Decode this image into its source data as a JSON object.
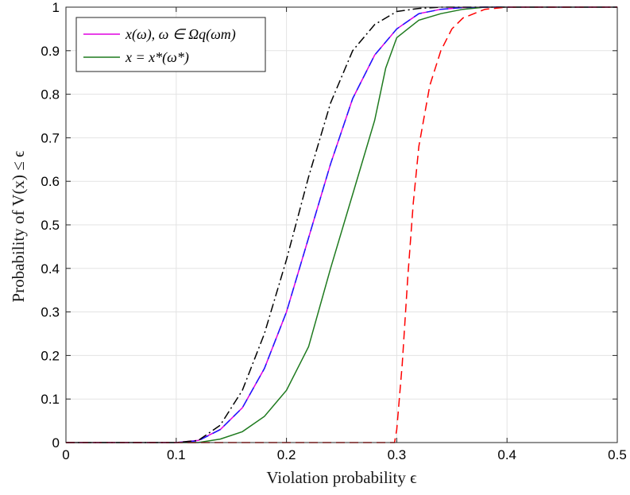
{
  "chart_data": {
    "type": "line",
    "title": "",
    "xlabel": "Violation probability ϵ",
    "ylabel": "Probability of  V(x) ≤ ϵ",
    "xlim": [
      0,
      0.5
    ],
    "ylim": [
      0,
      1
    ],
    "xticks": [
      "0",
      "0.1",
      "0.2",
      "0.3",
      "0.4",
      "0.5"
    ],
    "yticks": [
      "0",
      "0.1",
      "0.2",
      "0.3",
      "0.4",
      "0.5",
      "0.6",
      "0.7",
      "0.8",
      "0.9",
      "1"
    ],
    "grid": true,
    "legend_position": "top-left",
    "series": [
      {
        "name": "x(ω), ω ∈ Ωq(ωm)",
        "color": "#e100e1",
        "style": "solid",
        "x": [
          0,
          0.1,
          0.12,
          0.14,
          0.16,
          0.18,
          0.2,
          0.22,
          0.24,
          0.26,
          0.28,
          0.3,
          0.32,
          0.34,
          0.36,
          0.38,
          0.4,
          0.5
        ],
        "y": [
          0,
          0,
          0.005,
          0.03,
          0.08,
          0.17,
          0.3,
          0.47,
          0.64,
          0.79,
          0.89,
          0.95,
          0.985,
          0.995,
          0.999,
          1,
          1,
          1
        ]
      },
      {
        "name": "x = x*(ω*)",
        "color": "#1e7a1e",
        "style": "solid",
        "x": [
          0,
          0.12,
          0.14,
          0.16,
          0.18,
          0.2,
          0.22,
          0.24,
          0.26,
          0.28,
          0.29,
          0.3,
          0.32,
          0.34,
          0.36,
          0.38,
          0.4,
          0.5
        ],
        "y": [
          0,
          0,
          0.008,
          0.025,
          0.06,
          0.12,
          0.22,
          0.4,
          0.57,
          0.74,
          0.86,
          0.93,
          0.97,
          0.985,
          0.995,
          1,
          1,
          1
        ]
      },
      {
        "color": "#1a1aff",
        "style": "dashed",
        "x": [
          0,
          0.1,
          0.12,
          0.14,
          0.16,
          0.18,
          0.2,
          0.22,
          0.24,
          0.26,
          0.28,
          0.3,
          0.32,
          0.34,
          0.36,
          0.38,
          0.4,
          0.5
        ],
        "y": [
          0,
          0,
          0.004,
          0.03,
          0.08,
          0.17,
          0.3,
          0.47,
          0.64,
          0.79,
          0.89,
          0.95,
          0.985,
          0.995,
          0.999,
          1,
          1,
          1
        ]
      },
      {
        "color": "#000000",
        "style": "dashdot",
        "x": [
          0,
          0.1,
          0.12,
          0.14,
          0.16,
          0.18,
          0.2,
          0.22,
          0.24,
          0.26,
          0.28,
          0.3,
          0.32,
          0.34,
          0.36,
          0.4,
          0.5
        ],
        "y": [
          0,
          0,
          0.005,
          0.04,
          0.12,
          0.25,
          0.42,
          0.61,
          0.78,
          0.9,
          0.96,
          0.99,
          0.997,
          1,
          1,
          1,
          1
        ]
      },
      {
        "color": "#ff0000",
        "style": "dashed",
        "x": [
          0,
          0.298,
          0.3,
          0.305,
          0.31,
          0.315,
          0.32,
          0.33,
          0.34,
          0.35,
          0.36,
          0.38,
          0.4,
          0.45,
          0.5
        ],
        "y": [
          0,
          0,
          0.03,
          0.18,
          0.38,
          0.55,
          0.68,
          0.82,
          0.9,
          0.95,
          0.975,
          0.995,
          1,
          1,
          1
        ]
      }
    ]
  }
}
